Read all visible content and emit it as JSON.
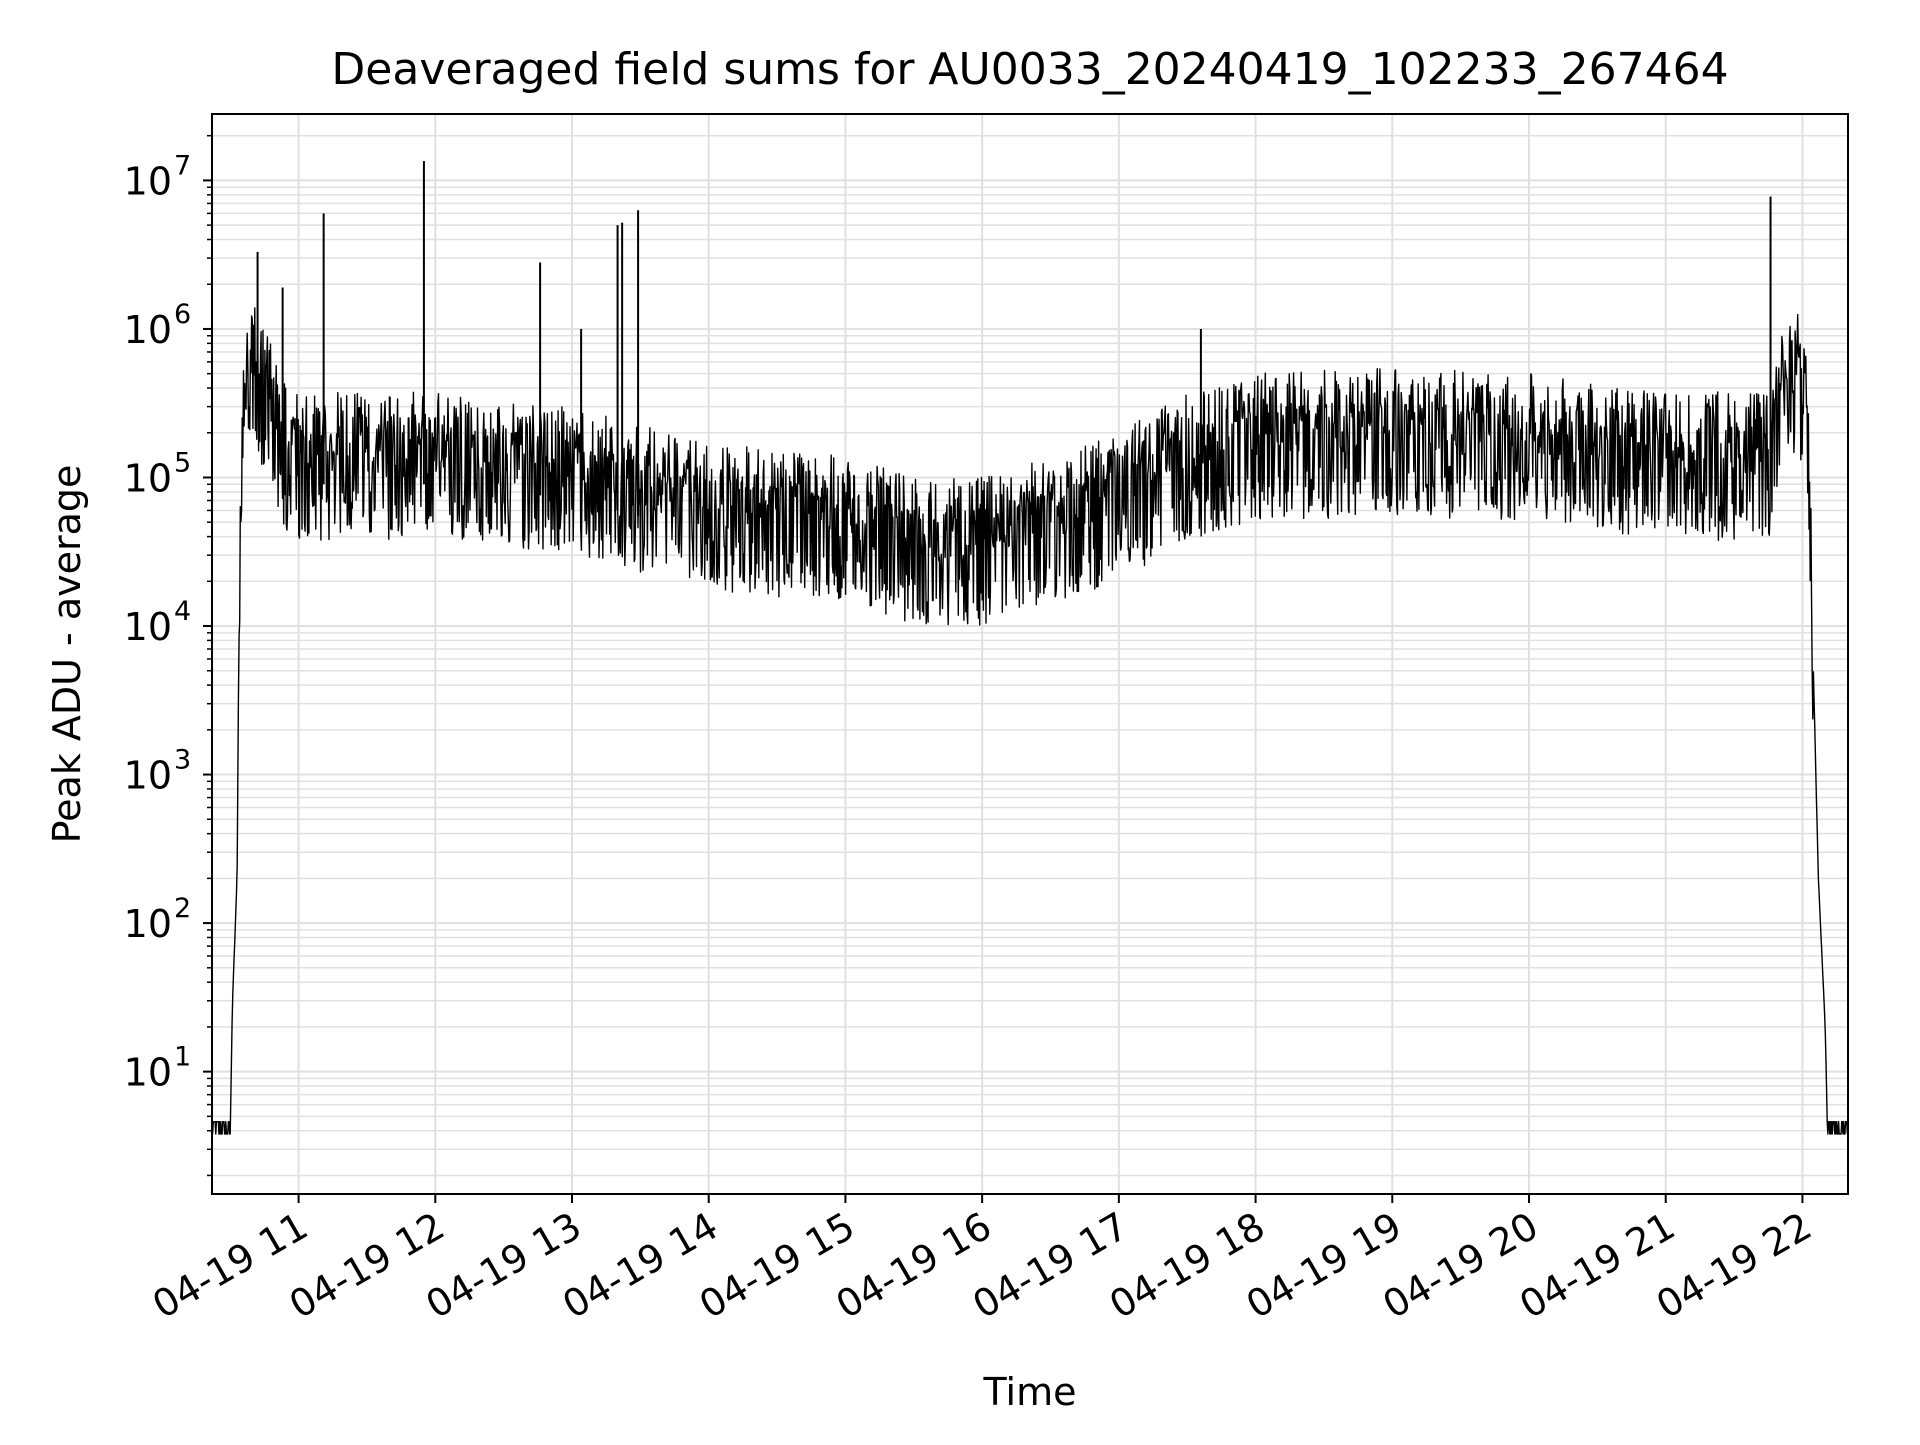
{
  "chart_data": {
    "type": "line",
    "title": "Deaveraged field sums for AU0033_20240419_102233_267464",
    "xlabel": "Time",
    "ylabel": "Peak ADU - average",
    "yscale": "log",
    "xlim": [
      "2024-04-19 10:22",
      "2024-04-19 22:20"
    ],
    "ylim": [
      1.5,
      28000000
    ],
    "grid": {
      "major": true,
      "minor_y": true
    },
    "line_color": "#000000",
    "grid_color": "#e0e0e0",
    "x_ticks": [
      "04-19 11",
      "04-19 12",
      "04-19 13",
      "04-19 14",
      "04-19 15",
      "04-19 16",
      "04-19 17",
      "04-19 18",
      "04-19 19",
      "04-19 20",
      "04-19 21",
      "04-19 22"
    ],
    "y_ticks": [
      {
        "value": 10,
        "base": "10",
        "exp": "1"
      },
      {
        "value": 100,
        "base": "10",
        "exp": "2"
      },
      {
        "value": 1000,
        "base": "10",
        "exp": "3"
      },
      {
        "value": 10000,
        "base": "10",
        "exp": "4"
      },
      {
        "value": 100000,
        "base": "10",
        "exp": "5"
      },
      {
        "value": 1000000,
        "base": "10",
        "exp": "6"
      },
      {
        "value": 10000000,
        "base": "10",
        "exp": "7"
      }
    ],
    "envelope": [
      {
        "x": "2024-04-19 10:22",
        "y": 4
      },
      {
        "x": "2024-04-19 10:30",
        "y": 4
      },
      {
        "x": "2024-04-19 10:31",
        "y": 30
      },
      {
        "x": "2024-04-19 10:33",
        "y": 200
      },
      {
        "x": "2024-04-19 10:34",
        "y": 20000
      },
      {
        "x": "2024-04-19 10:36",
        "y": 300000
      },
      {
        "x": "2024-04-19 10:40",
        "y": 600000
      },
      {
        "x": "2024-04-19 10:46",
        "y": 400000
      },
      {
        "x": "2024-04-19 10:55",
        "y": 150000
      },
      {
        "x": "2024-04-19 12:00",
        "y": 150000
      },
      {
        "x": "2024-04-19 13:00",
        "y": 120000
      },
      {
        "x": "2024-04-19 14:00",
        "y": 70000
      },
      {
        "x": "2024-04-19 15:00",
        "y": 55000
      },
      {
        "x": "2024-04-19 15:30",
        "y": 40000
      },
      {
        "x": "2024-04-19 16:00",
        "y": 40000
      },
      {
        "x": "2024-04-19 16:30",
        "y": 55000
      },
      {
        "x": "2024-04-19 17:00",
        "y": 80000
      },
      {
        "x": "2024-04-19 17:30",
        "y": 150000
      },
      {
        "x": "2024-04-19 18:00",
        "y": 200000
      },
      {
        "x": "2024-04-19 19:00",
        "y": 220000
      },
      {
        "x": "2024-04-19 20:00",
        "y": 200000
      },
      {
        "x": "2024-04-19 21:00",
        "y": 150000
      },
      {
        "x": "2024-04-19 21:45",
        "y": 150000
      },
      {
        "x": "2024-04-19 21:50",
        "y": 350000
      },
      {
        "x": "2024-04-19 21:58",
        "y": 500000
      },
      {
        "x": "2024-04-19 22:02",
        "y": 300000
      },
      {
        "x": "2024-04-19 22:07",
        "y": 200
      },
      {
        "x": "2024-04-19 22:10",
        "y": 20
      },
      {
        "x": "2024-04-19 22:11",
        "y": 4
      },
      {
        "x": "2024-04-19 22:20",
        "y": 4
      }
    ],
    "spikes": [
      {
        "x": "2024-04-19 10:42",
        "y": 3300000
      },
      {
        "x": "2024-04-19 10:53",
        "y": 1900000
      },
      {
        "x": "2024-04-19 11:11",
        "y": 6000000
      },
      {
        "x": "2024-04-19 11:55",
        "y": 13500000
      },
      {
        "x": "2024-04-19 12:46",
        "y": 2800000
      },
      {
        "x": "2024-04-19 13:04",
        "y": 1000000
      },
      {
        "x": "2024-04-19 13:20",
        "y": 5000000
      },
      {
        "x": "2024-04-19 13:22",
        "y": 5200000
      },
      {
        "x": "2024-04-19 13:29",
        "y": 6300000
      },
      {
        "x": "2024-04-19 17:36",
        "y": 1000000
      },
      {
        "x": "2024-04-19 21:46",
        "y": 7800000
      }
    ]
  }
}
